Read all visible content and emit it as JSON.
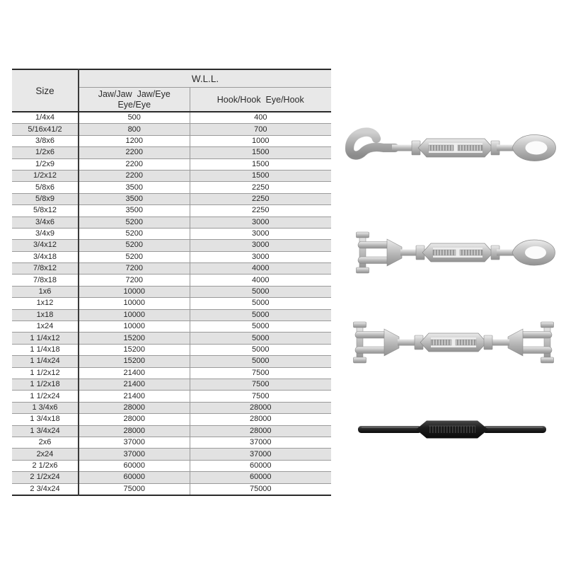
{
  "page": {
    "background": "#ffffff"
  },
  "table": {
    "header": {
      "size_label": "Size",
      "wll_label": "W.L.L.",
      "jaw_col_line1": "Jaw/Jaw  Jaw/Eye",
      "jaw_col_line2": "Eye/Eye",
      "hook_col_label": "Hook/Hook  Eye/Hook"
    },
    "rows": [
      {
        "size": "1/4x4",
        "jaw_wll": "500",
        "hook_wll": "400"
      },
      {
        "size": "5/16x41/2",
        "jaw_wll": "800",
        "hook_wll": "700"
      },
      {
        "size": "3/8x6",
        "jaw_wll": "1200",
        "hook_wll": "1000"
      },
      {
        "size": "1/2x6",
        "jaw_wll": "2200",
        "hook_wll": "1500"
      },
      {
        "size": "1/2x9",
        "jaw_wll": "2200",
        "hook_wll": "1500"
      },
      {
        "size": "1/2x12",
        "jaw_wll": "2200",
        "hook_wll": "1500"
      },
      {
        "size": "5/8x6",
        "jaw_wll": "3500",
        "hook_wll": "2250"
      },
      {
        "size": "5/8x9",
        "jaw_wll": "3500",
        "hook_wll": "2250"
      },
      {
        "size": "5/8x12",
        "jaw_wll": "3500",
        "hook_wll": "2250"
      },
      {
        "size": "3/4x6",
        "jaw_wll": "5200",
        "hook_wll": "3000"
      },
      {
        "size": "3/4x9",
        "jaw_wll": "5200",
        "hook_wll": "3000"
      },
      {
        "size": "3/4x12",
        "jaw_wll": "5200",
        "hook_wll": "3000"
      },
      {
        "size": "3/4x18",
        "jaw_wll": "5200",
        "hook_wll": "3000"
      },
      {
        "size": "7/8x12",
        "jaw_wll": "7200",
        "hook_wll": "4000"
      },
      {
        "size": "7/8x18",
        "jaw_wll": "7200",
        "hook_wll": "4000"
      },
      {
        "size": "1x6",
        "jaw_wll": "10000",
        "hook_wll": "5000"
      },
      {
        "size": "1x12",
        "jaw_wll": "10000",
        "hook_wll": "5000"
      },
      {
        "size": "1x18",
        "jaw_wll": "10000",
        "hook_wll": "5000"
      },
      {
        "size": "1x24",
        "jaw_wll": "10000",
        "hook_wll": "5000"
      },
      {
        "size": "1 1/4x12",
        "jaw_wll": "15200",
        "hook_wll": "5000"
      },
      {
        "size": "1 1/4x18",
        "jaw_wll": "15200",
        "hook_wll": "5000"
      },
      {
        "size": "1 1/4x24",
        "jaw_wll": "15200",
        "hook_wll": "5000"
      },
      {
        "size": "1 1/2x12",
        "jaw_wll": "21400",
        "hook_wll": "7500"
      },
      {
        "size": "1 1/2x18",
        "jaw_wll": "21400",
        "hook_wll": "7500"
      },
      {
        "size": "1 1/2x24",
        "jaw_wll": "21400",
        "hook_wll": "7500"
      },
      {
        "size": "1 3/4x6",
        "jaw_wll": "28000",
        "hook_wll": "28000"
      },
      {
        "size": "1 3/4x18",
        "jaw_wll": "28000",
        "hook_wll": "28000"
      },
      {
        "size": "1 3/4x24",
        "jaw_wll": "28000",
        "hook_wll": "28000"
      },
      {
        "size": "2x6",
        "jaw_wll": "37000",
        "hook_wll": "37000"
      },
      {
        "size": "2x24",
        "jaw_wll": "37000",
        "hook_wll": "37000"
      },
      {
        "size": "2 1/2x6",
        "jaw_wll": "60000",
        "hook_wll": "60000"
      },
      {
        "size": "2 1/2x24",
        "jaw_wll": "60000",
        "hook_wll": "60000"
      },
      {
        "size": "2 3/4x24",
        "jaw_wll": "75000",
        "hook_wll": "75000"
      }
    ],
    "colors": {
      "header_bg": "#e8e8e8",
      "row_alt_bg": "#e2e2e2",
      "border_dark": "#2a2a2a",
      "border_light": "#9a9a9a",
      "text": "#262626"
    }
  },
  "images": [
    {
      "icon": "hook-eye-turnbuckle-photo"
    },
    {
      "icon": "jaw-eye-turnbuckle-photo"
    },
    {
      "icon": "jaw-jaw-turnbuckle-photo"
    },
    {
      "icon": "stub-stub-turnbuckle-photo"
    }
  ]
}
